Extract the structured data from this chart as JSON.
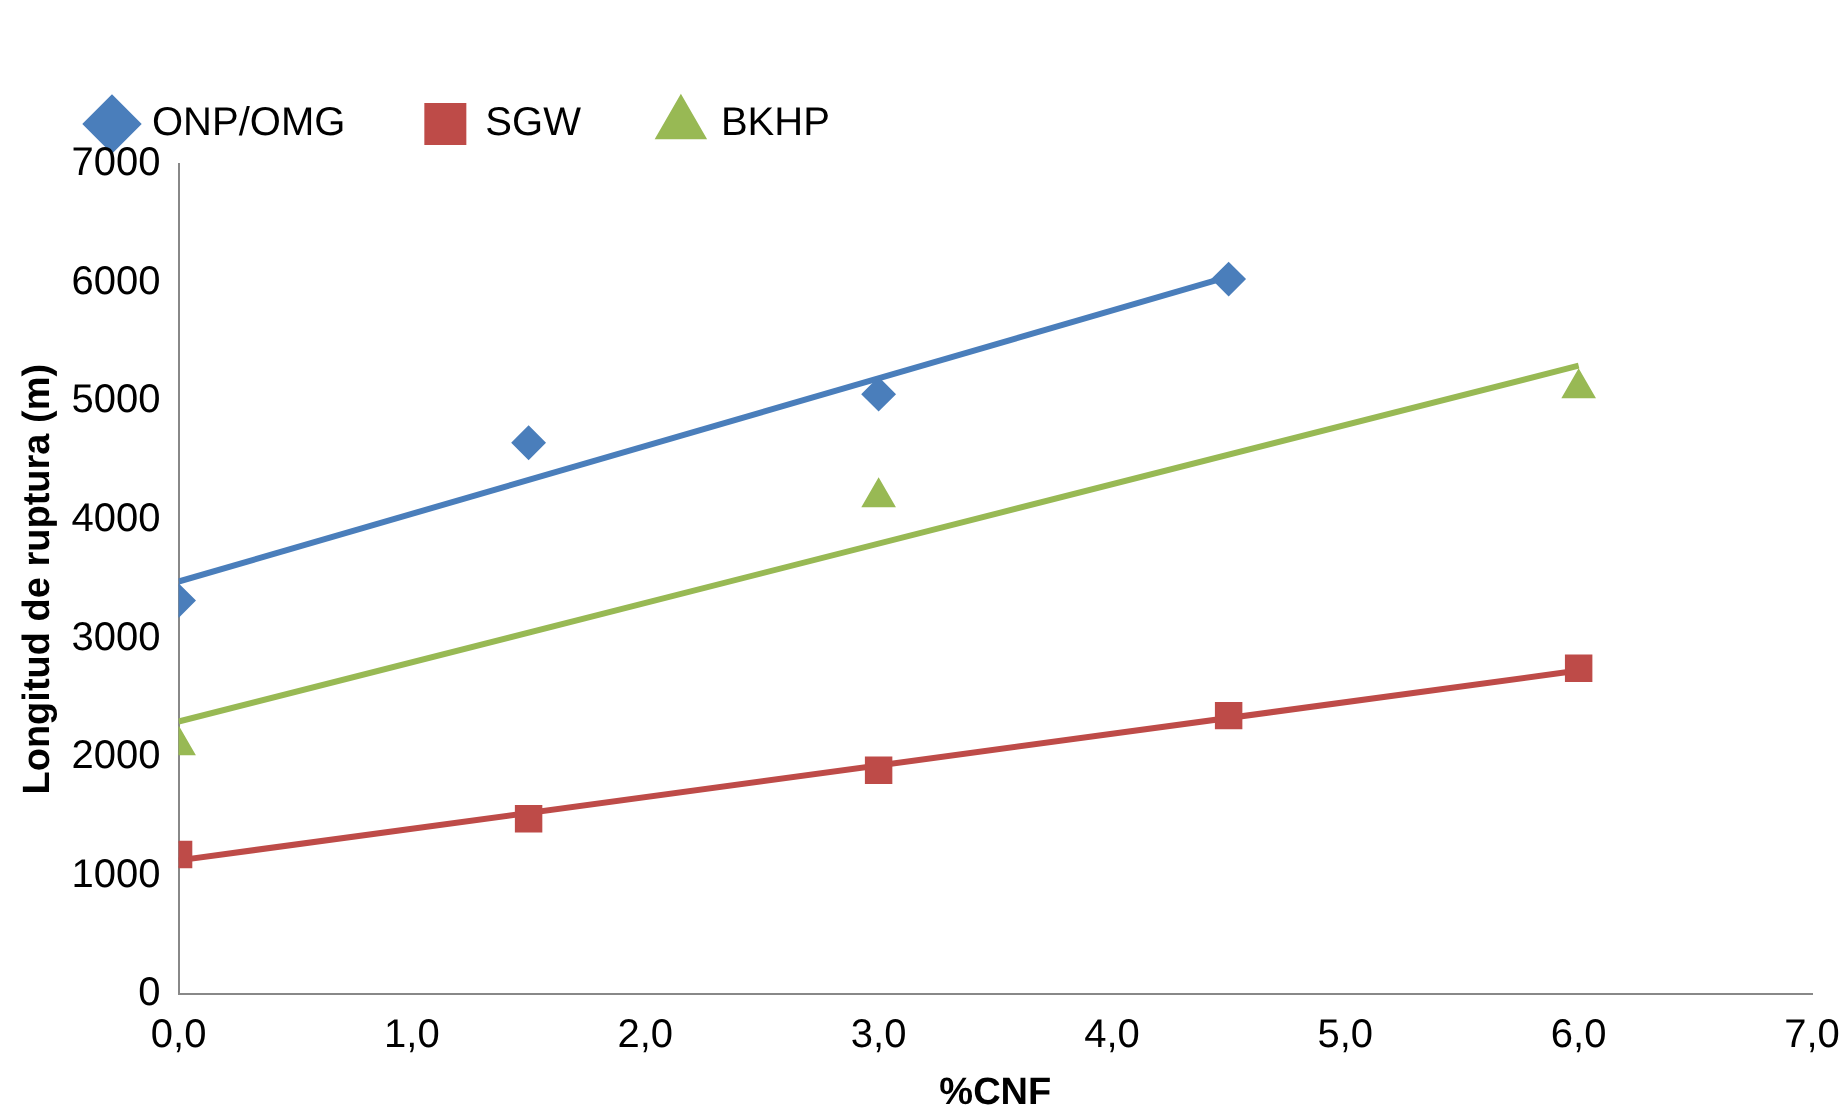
{
  "chart_data": {
    "type": "scatter",
    "xlabel": "%CNF",
    "ylabel": "Longitud de ruptura (m)",
    "xlim": [
      0,
      7
    ],
    "xticks": [
      {
        "value": 0,
        "label": "0,0"
      },
      {
        "value": 1,
        "label": "1,0"
      },
      {
        "value": 2,
        "label": "2,0"
      },
      {
        "value": 3,
        "label": "3,0"
      },
      {
        "value": 4,
        "label": "4,0"
      },
      {
        "value": 5,
        "label": "5,0"
      },
      {
        "value": 6,
        "label": "6,0"
      },
      {
        "value": 7,
        "label": "7,0"
      }
    ],
    "ylim": [
      0,
      7000
    ],
    "yticks": [
      0,
      1000,
      2000,
      3000,
      4000,
      5000,
      6000,
      7000
    ],
    "grid": false,
    "legend": "top left",
    "series": [
      {
        "name": "ONP/OMG",
        "color": "#4a7ebb",
        "marker": "diamond",
        "x": [
          0,
          1.5,
          3,
          4.5
        ],
        "values": [
          3320,
          4650,
          5060,
          6030
        ]
      },
      {
        "name": "SGW",
        "color": "#be4b48",
        "marker": "square",
        "x": [
          0,
          1.5,
          3,
          4.5,
          6
        ],
        "values": [
          1180,
          1480,
          1890,
          2350,
          2750
        ]
      },
      {
        "name": "BKHP",
        "color": "#98b954",
        "marker": "triangle",
        "x": [
          0,
          3,
          6
        ],
        "values": [
          2100,
          4190,
          5110
        ]
      },
      {
        "type": "line",
        "color": "#4a7ebb",
        "marker": "none",
        "x": [
          0,
          4.5
        ],
        "values": [
          3480,
          6050
        ]
      },
      {
        "type": "line",
        "color": "#be4b48",
        "marker": "none",
        "x": [
          0,
          6
        ],
        "values": [
          1130,
          2730
        ]
      },
      {
        "type": "line",
        "color": "#98b954",
        "marker": "none",
        "x": [
          0,
          6
        ],
        "values": [
          2300,
          5300
        ]
      }
    ]
  }
}
